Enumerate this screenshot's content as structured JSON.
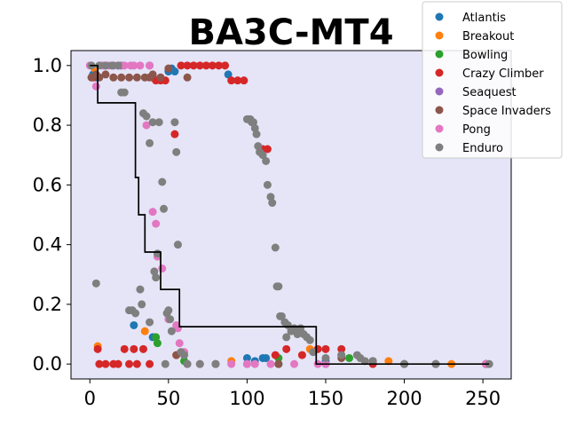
{
  "chart_data": {
    "type": "scatter",
    "title": "BA3C-MT4",
    "xlabel": "",
    "ylabel": "",
    "xlim": [
      -12,
      268
    ],
    "ylim": [
      -0.05,
      1.05
    ],
    "xticks": [
      0,
      50,
      100,
      150,
      200,
      250
    ],
    "yticks": [
      0.0,
      0.2,
      0.4,
      0.6,
      0.8,
      1.0
    ],
    "xtick_labels": [
      "0",
      "50",
      "100",
      "150",
      "200",
      "250"
    ],
    "ytick_labels": [
      "0.0",
      "0.2",
      "0.4",
      "0.6",
      "0.8",
      "1.0"
    ],
    "plot_background": "#e5e5f7",
    "legend_position": "top-right",
    "series": [
      {
        "name": "Atlantis",
        "color": "#1f77b4",
        "points": [
          [
            2,
            0.97
          ],
          [
            4,
            0.96
          ],
          [
            28,
            0.13
          ],
          [
            40,
            0.09
          ],
          [
            50,
            0.98
          ],
          [
            52,
            0.99
          ],
          [
            54,
            0.98
          ],
          [
            88,
            0.97
          ],
          [
            100,
            0.02
          ],
          [
            105,
            0.01
          ],
          [
            110,
            0.02
          ],
          [
            112,
            0.02
          ],
          [
            120,
            0.0
          ],
          [
            150,
            0.01
          ],
          [
            200,
            0.0
          ],
          [
            252,
            0.0
          ]
        ]
      },
      {
        "name": "Breakout",
        "color": "#ff7f0e",
        "points": [
          [
            3,
            0.99
          ],
          [
            5,
            0.06
          ],
          [
            35,
            0.11
          ],
          [
            55,
            0.03
          ],
          [
            60,
            0.04
          ],
          [
            90,
            0.01
          ],
          [
            140,
            0.05
          ],
          [
            160,
            0.03
          ],
          [
            190,
            0.01
          ],
          [
            230,
            0.0
          ],
          [
            252,
            0.0
          ]
        ]
      },
      {
        "name": "Bowling",
        "color": "#2ca02c",
        "points": [
          [
            42,
            0.09
          ],
          [
            43,
            0.07
          ],
          [
            60,
            0.01
          ],
          [
            120,
            0.02
          ],
          [
            165,
            0.02
          ],
          [
            200,
            0.0
          ],
          [
            252,
            0.0
          ]
        ]
      },
      {
        "name": "Crazy Climber",
        "color": "#d62728",
        "points": [
          [
            2,
            0.96
          ],
          [
            5,
            0.05
          ],
          [
            6,
            0.0
          ],
          [
            10,
            0.0
          ],
          [
            15,
            0.0
          ],
          [
            18,
            0.0
          ],
          [
            22,
            0.05
          ],
          [
            25,
            0.0
          ],
          [
            28,
            0.05
          ],
          [
            30,
            0.0
          ],
          [
            34,
            0.05
          ],
          [
            38,
            0.0
          ],
          [
            40,
            0.96
          ],
          [
            42,
            0.95
          ],
          [
            45,
            0.95
          ],
          [
            48,
            0.95
          ],
          [
            54,
            0.77
          ],
          [
            58,
            1.0
          ],
          [
            62,
            1.0
          ],
          [
            66,
            1.0
          ],
          [
            70,
            1.0
          ],
          [
            74,
            1.0
          ],
          [
            78,
            1.0
          ],
          [
            82,
            1.0
          ],
          [
            86,
            1.0
          ],
          [
            90,
            0.95
          ],
          [
            94,
            0.95
          ],
          [
            98,
            0.95
          ],
          [
            110,
            0.72
          ],
          [
            113,
            0.72
          ],
          [
            118,
            0.03
          ],
          [
            125,
            0.05
          ],
          [
            135,
            0.03
          ],
          [
            145,
            0.05
          ],
          [
            150,
            0.05
          ],
          [
            160,
            0.05
          ],
          [
            180,
            0.0
          ],
          [
            252,
            0.0
          ]
        ]
      },
      {
        "name": "Seaquest",
        "color": "#9467bd",
        "points": [
          [
            8,
            1.0
          ],
          [
            10,
            1.0
          ],
          [
            15,
            1.0
          ],
          [
            20,
            1.0
          ],
          [
            38,
            1.0
          ],
          [
            100,
            0.0
          ],
          [
            150,
            0.0
          ],
          [
            252,
            0.0
          ]
        ]
      },
      {
        "name": "Space Invaders",
        "color": "#8c564b",
        "points": [
          [
            1,
            0.96
          ],
          [
            4,
            0.97
          ],
          [
            6,
            0.96
          ],
          [
            10,
            0.97
          ],
          [
            15,
            0.96
          ],
          [
            20,
            0.96
          ],
          [
            25,
            0.96
          ],
          [
            30,
            0.96
          ],
          [
            35,
            0.96
          ],
          [
            38,
            0.96
          ],
          [
            40,
            0.97
          ],
          [
            45,
            0.96
          ],
          [
            50,
            0.99
          ],
          [
            55,
            0.03
          ],
          [
            58,
            0.04
          ],
          [
            62,
            0.96
          ],
          [
            80,
            0.0
          ],
          [
            120,
            0.0
          ],
          [
            160,
            0.02
          ],
          [
            180,
            0.01
          ],
          [
            220,
            0.0
          ],
          [
            252,
            0.0
          ]
        ]
      },
      {
        "name": "Pong",
        "color": "#e377c2",
        "points": [
          [
            0,
            1.0
          ],
          [
            4,
            0.93
          ],
          [
            8,
            1.0
          ],
          [
            12,
            1.0
          ],
          [
            18,
            1.0
          ],
          [
            22,
            1.0
          ],
          [
            26,
            1.0
          ],
          [
            28,
            1.0
          ],
          [
            32,
            1.0
          ],
          [
            36,
            0.8
          ],
          [
            38,
            1.0
          ],
          [
            40,
            0.51
          ],
          [
            42,
            0.47
          ],
          [
            43,
            0.36
          ],
          [
            46,
            0.32
          ],
          [
            50,
            0.15
          ],
          [
            55,
            0.13
          ],
          [
            56,
            0.12
          ],
          [
            57,
            0.07
          ],
          [
            60,
            0.04
          ],
          [
            62,
            0.0
          ],
          [
            70,
            0.0
          ],
          [
            90,
            0.0
          ],
          [
            100,
            0.0
          ],
          [
            105,
            0.0
          ],
          [
            115,
            0.0
          ],
          [
            130,
            0.0
          ],
          [
            145,
            0.0
          ],
          [
            150,
            0.0
          ],
          [
            200,
            0.0
          ],
          [
            252,
            0.0
          ]
        ]
      },
      {
        "name": "Enduro",
        "color": "#7f7f7f",
        "points": [
          [
            1,
            1.0
          ],
          [
            4,
            0.27
          ],
          [
            6,
            1.0
          ],
          [
            10,
            1.0
          ],
          [
            14,
            1.0
          ],
          [
            18,
            1.0
          ],
          [
            20,
            0.91
          ],
          [
            22,
            0.91
          ],
          [
            25,
            0.18
          ],
          [
            27,
            0.18
          ],
          [
            29,
            0.17
          ],
          [
            32,
            0.25
          ],
          [
            33,
            0.2
          ],
          [
            34,
            0.84
          ],
          [
            36,
            0.83
          ],
          [
            38,
            0.74
          ],
          [
            38,
            0.14
          ],
          [
            40,
            0.81
          ],
          [
            41,
            0.31
          ],
          [
            42,
            0.29
          ],
          [
            43,
            0.37
          ],
          [
            44,
            0.81
          ],
          [
            46,
            0.61
          ],
          [
            47,
            0.52
          ],
          [
            48,
            0.0
          ],
          [
            49,
            0.17
          ],
          [
            50,
            0.18
          ],
          [
            51,
            0.15
          ],
          [
            52,
            0.11
          ],
          [
            54,
            0.81
          ],
          [
            55,
            0.71
          ],
          [
            56,
            0.4
          ],
          [
            58,
            0.04
          ],
          [
            60,
            0.03
          ],
          [
            62,
            0.0
          ],
          [
            70,
            0.0
          ],
          [
            80,
            0.0
          ],
          [
            100,
            0.82
          ],
          [
            101,
            0.82
          ],
          [
            102,
            0.82
          ],
          [
            103,
            0.81
          ],
          [
            104,
            0.81
          ],
          [
            105,
            0.79
          ],
          [
            106,
            0.77
          ],
          [
            107,
            0.73
          ],
          [
            108,
            0.71
          ],
          [
            110,
            0.7
          ],
          [
            112,
            0.68
          ],
          [
            113,
            0.6
          ],
          [
            115,
            0.56
          ],
          [
            116,
            0.54
          ],
          [
            118,
            0.39
          ],
          [
            119,
            0.26
          ],
          [
            120,
            0.26
          ],
          [
            121,
            0.16
          ],
          [
            122,
            0.16
          ],
          [
            124,
            0.14
          ],
          [
            125,
            0.09
          ],
          [
            126,
            0.13
          ],
          [
            128,
            0.11
          ],
          [
            130,
            0.12
          ],
          [
            132,
            0.1
          ],
          [
            134,
            0.12
          ],
          [
            136,
            0.1
          ],
          [
            138,
            0.09
          ],
          [
            140,
            0.08
          ],
          [
            142,
            0.04
          ],
          [
            150,
            0.02
          ],
          [
            160,
            0.03
          ],
          [
            170,
            0.03
          ],
          [
            172,
            0.02
          ],
          [
            175,
            0.01
          ],
          [
            180,
            0.01
          ],
          [
            200,
            0.0
          ],
          [
            220,
            0.0
          ],
          [
            254,
            0.0
          ]
        ]
      }
    ],
    "line": {
      "color": "#000000",
      "points": [
        [
          0,
          1.0
        ],
        [
          5,
          1.0
        ],
        [
          5,
          0.875
        ],
        [
          29,
          0.875
        ],
        [
          29,
          0.625
        ],
        [
          31,
          0.625
        ],
        [
          31,
          0.5
        ],
        [
          35,
          0.5
        ],
        [
          35,
          0.375
        ],
        [
          45,
          0.375
        ],
        [
          45,
          0.25
        ],
        [
          57,
          0.25
        ],
        [
          57,
          0.125
        ],
        [
          144,
          0.125
        ],
        [
          144,
          0.0
        ],
        [
          254,
          0.0
        ]
      ]
    }
  }
}
